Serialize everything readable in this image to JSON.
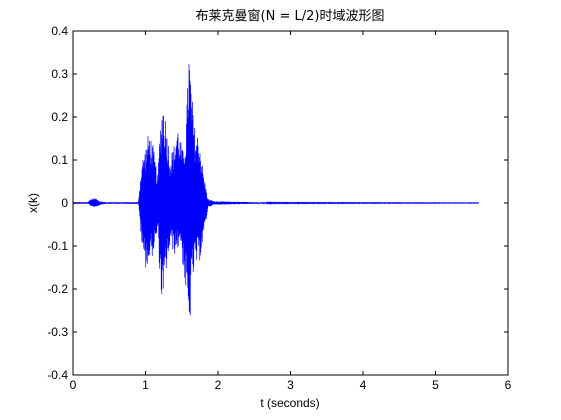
{
  "chart_data": {
    "type": "line",
    "title": "布莱克曼窗(N = L/2)时域波形图",
    "xlabel": "t (seconds)",
    "ylabel": "x(k)",
    "xlim": [
      0,
      6
    ],
    "ylim": [
      -0.4,
      0.4
    ],
    "xticks": [
      "0",
      "1",
      "2",
      "3",
      "4",
      "5",
      "6"
    ],
    "yticks": [
      "-0.4",
      "-0.3",
      "-0.2",
      "-0.1",
      "0",
      "0.1",
      "0.2",
      "0.3",
      "0.4"
    ],
    "grid": false,
    "series": [
      {
        "color": "#0000ff",
        "x_range": [
          0,
          5.6
        ],
        "envelope": [
          {
            "t": 0.0,
            "pos": 0.002,
            "neg": -0.002
          },
          {
            "t": 0.2,
            "pos": 0.002,
            "neg": -0.002
          },
          {
            "t": 0.25,
            "pos": 0.01,
            "neg": -0.008
          },
          {
            "t": 0.3,
            "pos": 0.012,
            "neg": -0.01
          },
          {
            "t": 0.38,
            "pos": 0.004,
            "neg": -0.004
          },
          {
            "t": 0.45,
            "pos": 0.002,
            "neg": -0.002
          },
          {
            "t": 0.9,
            "pos": 0.002,
            "neg": -0.002
          },
          {
            "t": 0.95,
            "pos": 0.1,
            "neg": -0.11
          },
          {
            "t": 1.0,
            "pos": 0.13,
            "neg": -0.15
          },
          {
            "t": 1.05,
            "pos": 0.17,
            "neg": -0.14
          },
          {
            "t": 1.1,
            "pos": 0.14,
            "neg": -0.12
          },
          {
            "t": 1.17,
            "pos": 0.06,
            "neg": -0.07
          },
          {
            "t": 1.2,
            "pos": 0.18,
            "neg": -0.2
          },
          {
            "t": 1.24,
            "pos": 0.25,
            "neg": -0.25
          },
          {
            "t": 1.28,
            "pos": 0.2,
            "neg": -0.16
          },
          {
            "t": 1.34,
            "pos": 0.11,
            "neg": -0.1
          },
          {
            "t": 1.4,
            "pos": 0.14,
            "neg": -0.12
          },
          {
            "t": 1.44,
            "pos": 0.19,
            "neg": -0.11
          },
          {
            "t": 1.48,
            "pos": 0.15,
            "neg": -0.09
          },
          {
            "t": 1.52,
            "pos": 0.12,
            "neg": -0.16
          },
          {
            "t": 1.56,
            "pos": 0.18,
            "neg": -0.22
          },
          {
            "t": 1.6,
            "pos": 0.37,
            "neg": -0.33
          },
          {
            "t": 1.63,
            "pos": 0.28,
            "neg": -0.2
          },
          {
            "t": 1.68,
            "pos": 0.17,
            "neg": -0.15
          },
          {
            "t": 1.74,
            "pos": 0.16,
            "neg": -0.14
          },
          {
            "t": 1.8,
            "pos": 0.07,
            "neg": -0.08
          },
          {
            "t": 1.86,
            "pos": 0.01,
            "neg": -0.01
          },
          {
            "t": 1.95,
            "pos": 0.004,
            "neg": -0.004
          },
          {
            "t": 2.5,
            "pos": 0.002,
            "neg": -0.002
          },
          {
            "t": 2.8,
            "pos": 0.001,
            "neg": -0.001
          },
          {
            "t": 5.6,
            "pos": 0.0005,
            "neg": -0.0005
          }
        ]
      }
    ]
  }
}
